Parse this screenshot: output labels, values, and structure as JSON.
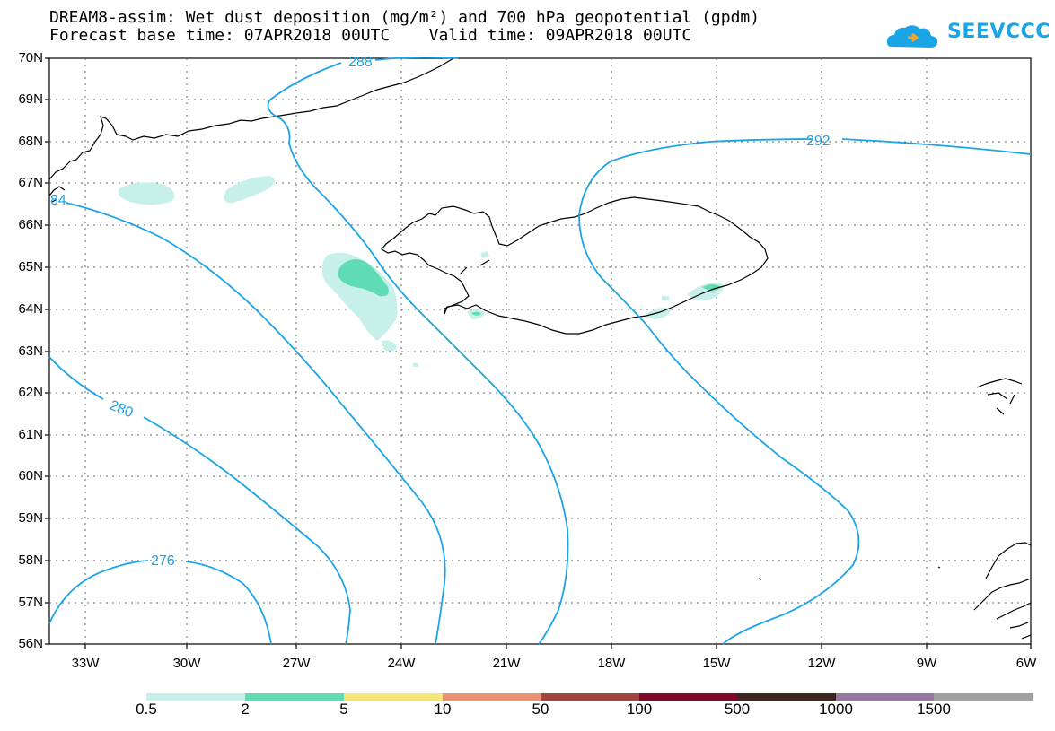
{
  "title": {
    "line1": "DREAM8-assim: Wet dust deposition (mg/m²) and 700 hPa geopotential (gpdm)",
    "line2": "Forecast base time: 07APR2018 00UTC    Valid time: 09APR2018 00UTC"
  },
  "logo": {
    "text": "SEEVCCC",
    "icon": "cloud-logo-icon",
    "color": "#1ba4e6"
  },
  "map": {
    "lat_labels": [
      "70N",
      "69N",
      "68N",
      "67N",
      "66N",
      "65N",
      "64N",
      "63N",
      "62N",
      "61N",
      "60N",
      "59N",
      "58N",
      "57N",
      "56N"
    ],
    "lon_labels": [
      "33W",
      "30W",
      "27W",
      "24W",
      "21W",
      "18W",
      "15W",
      "12W",
      "9W",
      "6W"
    ],
    "lat_range": [
      56,
      70
    ],
    "lon_range": [
      -34.4,
      -6
    ],
    "grid": "dotted",
    "contour_color": "#1ba4e6",
    "contour_labels": [
      "288",
      "292",
      "84",
      "280",
      "276"
    ]
  },
  "legend": {
    "labels": [
      "0.5",
      "2",
      "5",
      "10",
      "50",
      "100",
      "500",
      "1000",
      "1500"
    ],
    "colors": [
      "#c8f0ea",
      "#5fdcb4",
      "#f5e67a",
      "#eb9173",
      "#a0463c",
      "#7d0a28",
      "#3c281e",
      "#9678a0",
      "#a0a0a0"
    ]
  }
}
